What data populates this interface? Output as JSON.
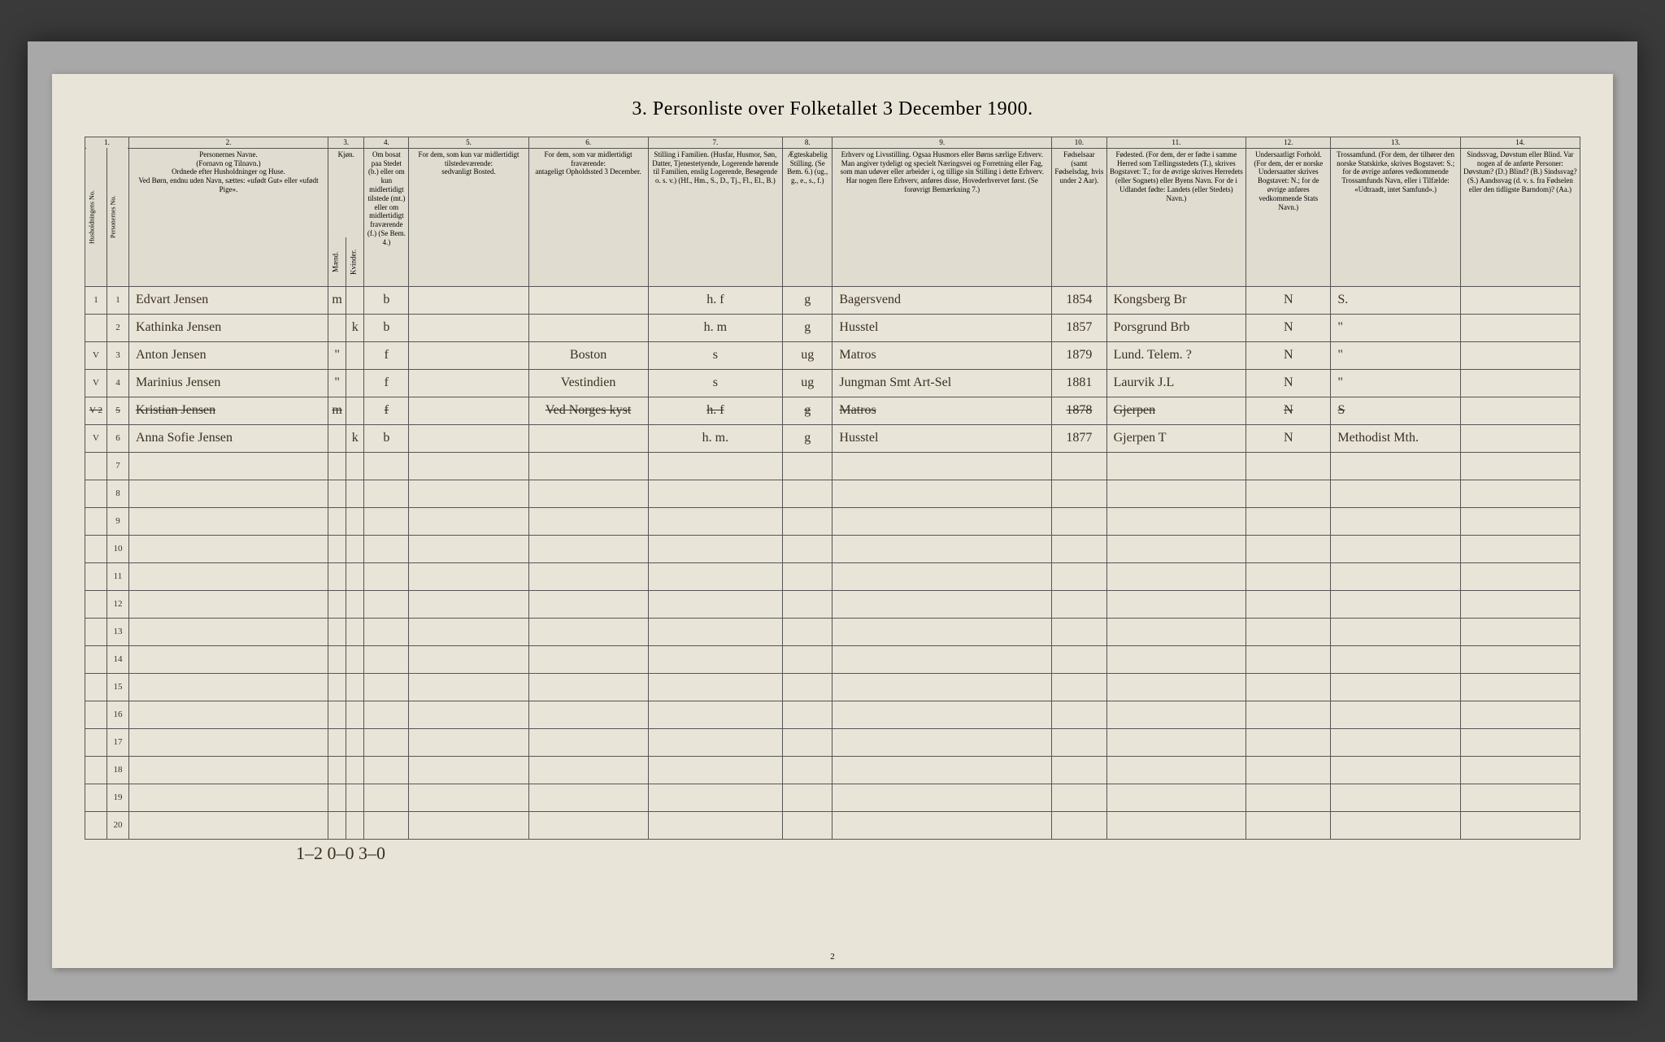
{
  "title": "3. Personliste over Folketallet 3 December 1900.",
  "page_number": "2",
  "footer_tally": "1–2   0–0     3–0",
  "column_numbers": [
    "1.",
    "2.",
    "3.",
    "4.",
    "5.",
    "6.",
    "7.",
    "8.",
    "9.",
    "10.",
    "11.",
    "12.",
    "13.",
    "14."
  ],
  "headers": {
    "c1": "Husholdningens No.",
    "c1b": "Personernes No.",
    "c2": "Personernes Navne.\n(Fornavn og Tilnavn.)\nOrdnede efter Husholdninger og Huse.\nVed Børn, endnu uden Navn, sættes: «ufødt Gut» eller «ufødt Pige».",
    "c3": "Kjøn.",
    "c3m": "Mænd.",
    "c3k": "Kvinder.",
    "c4": "Om bosat paa Stedet (b.) eller om kun midlertidigt tilstede (mt.) eller om midlertidigt fraværende (f.) (Se Bem. 4.)",
    "c5": "For dem, som kun var midlertidigt tilstedeværende:\nsedvanligt Bosted.",
    "c6": "For dem, som var midlertidigt fraværende:\nantageligt Opholdssted 3 December.",
    "c7": "Stilling i Familien.\n(Husfar, Husmor, Søn, Datter, Tjenestetyende, Logerende hørende til Familien, enslig Logerende, Besøgende o. s. v.)\n(Hf., Hm., S., D., Tj., Fl., El., B.)",
    "c8": "Ægteskabelig Stilling.\n(Se Bem. 6.)\n(ug., g., e., s., f.)",
    "c9": "Erhverv og Livsstilling.\nOgsaa Husmors eller Børns særlige Erhverv. Man angiver tydeligt og specielt Næringsvei og Forretning eller Fag, som man udøver eller arbeider i, og tillige sin Stilling i dette Erhverv. Har nogen flere Erhverv, anføres disse, Hovederhvervet først.\n(Se forøvrigt Bemærkning 7.)",
    "c10": "Fødselsaar\n(samt Fødselsdag, hvis under 2 Aar).",
    "c11": "Fødested.\n(For dem, der er fødte i samme Herred som Tællingsstedets (T.), skrives Bogstavet: T.; for de øvrige skrives Herredets (eller Sognets) eller Byens Navn. For de i Udlandet fødte: Landets (eller Stedets) Navn.)",
    "c12": "Undersaatligt Forhold.\n(For dem, der er norske Undersaatter skrives Bogstavet: N.; for de øvrige anføres vedkommende Stats Navn.)",
    "c13": "Trossamfund.\n(For dem, der tilhører den norske Statskirke, skrives Bogstavet: S.; for de øvrige anføres vedkommende Trossamfunds Navn, eller i Tilfælde: «Udtraadt, intet Samfund».)",
    "c14": "Sindssvag, Døvstum eller Blind.\nVar nogen af de anførte Personer:\nDøvstum? (D.)\nBlind? (B.)\nSindssvag? (S.)\nAandssvag (d. v. s. fra Fødselen eller den tidligste Barndom)? (Aa.)"
  },
  "rows": [
    {
      "hh": "1",
      "pn": "1",
      "name": "Edvart Jensen",
      "m": "m",
      "k": "",
      "pres": "b",
      "temp": "",
      "away": "",
      "pos": "h. f",
      "mar": "g",
      "occ": "Bagersvend",
      "birth": "1854",
      "bplace": "Kongsberg Br",
      "cit": "N",
      "rel": "S.",
      "dis": ""
    },
    {
      "hh": "",
      "pn": "2",
      "name": "Kathinka Jensen",
      "m": "",
      "k": "k",
      "pres": "b",
      "temp": "",
      "away": "",
      "pos": "h. m",
      "mar": "g",
      "occ": "Husstel",
      "birth": "1857",
      "bplace": "Porsgrund Brb",
      "cit": "N",
      "rel": "\"",
      "dis": ""
    },
    {
      "hh": "V",
      "pn": "3",
      "name": "Anton Jensen",
      "m": "\"",
      "k": "",
      "pres": "f",
      "temp": "",
      "away": "Boston",
      "pos": "s",
      "mar": "ug",
      "occ": "Matros",
      "birth": "1879",
      "bplace": "Lund. Telem. ?",
      "cit": "N",
      "rel": "\"",
      "dis": ""
    },
    {
      "hh": "V",
      "pn": "4",
      "name": "Marinius Jensen",
      "m": "\"",
      "k": "",
      "pres": "f",
      "temp": "",
      "away": "Vestindien",
      "pos": "s",
      "mar": "ug",
      "occ": "Jungman Smt Art-Sel",
      "birth": "1881",
      "bplace": "Laurvik J.L",
      "cit": "N",
      "rel": "\"",
      "dis": ""
    },
    {
      "hh": "V 2",
      "pn": "5",
      "name": "Kristian Jensen",
      "m": "m",
      "k": "",
      "pres": "f",
      "temp": "",
      "away": "Ved Norges kyst",
      "pos": "h. f",
      "mar": "g",
      "occ": "Matros",
      "birth": "1878",
      "bplace": "Gjerpen",
      "cit": "N",
      "rel": "S",
      "dis": "",
      "crossed": true
    },
    {
      "hh": "V",
      "pn": "6",
      "name": "Anna Sofie Jensen",
      "m": "",
      "k": "k",
      "pres": "b",
      "temp": "",
      "away": "",
      "pos": "h. m.",
      "mar": "g",
      "occ": "Husstel",
      "birth": "1877",
      "bplace": "Gjerpen T",
      "cit": "N",
      "rel": "Methodist Mth.",
      "dis": ""
    }
  ],
  "empty_rows": [
    7,
    8,
    9,
    10,
    11,
    12,
    13,
    14,
    15,
    16,
    17,
    18,
    19,
    20
  ]
}
